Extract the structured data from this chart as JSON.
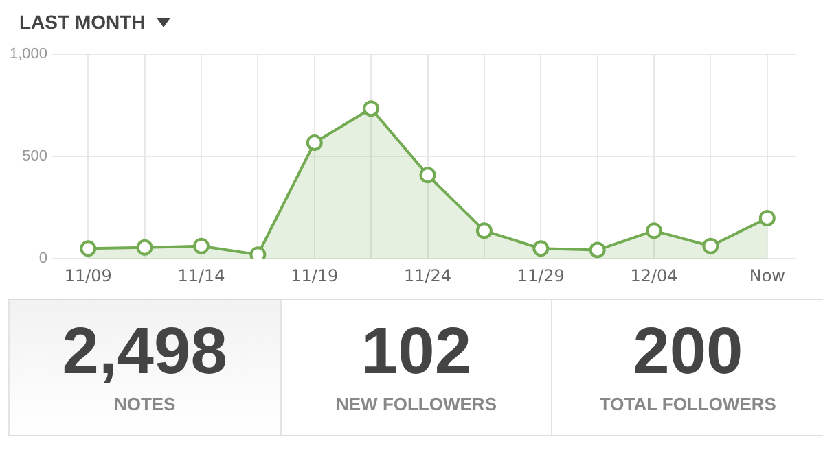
{
  "chart_data": [
    {
      "type": "area",
      "title": "LAST MONTH",
      "categories": [
        "11/09",
        null,
        "11/14",
        null,
        "11/19",
        null,
        "11/24",
        null,
        "11/29",
        null,
        "12/04",
        null,
        "Now"
      ],
      "series": [
        {
          "color": "#72ab52",
          "values": [
            50,
            55,
            62,
            20,
            568,
            735,
            409,
            137,
            50,
            43,
            137,
            62,
            199
          ]
        }
      ],
      "ylim": [
        0,
        1000
      ],
      "yticks": [
        0,
        500,
        {
          "value": 1000,
          "label": "1,000"
        }
      ],
      "grid": true,
      "marker": "circle",
      "legend": false
    },
    {
      "type": "other",
      "annotations": [
        "2,498",
        "NOTES",
        "102",
        "NEW FOLLOWERS",
        "200",
        "TOTAL FOLLOWERS"
      ]
    }
  ]
}
